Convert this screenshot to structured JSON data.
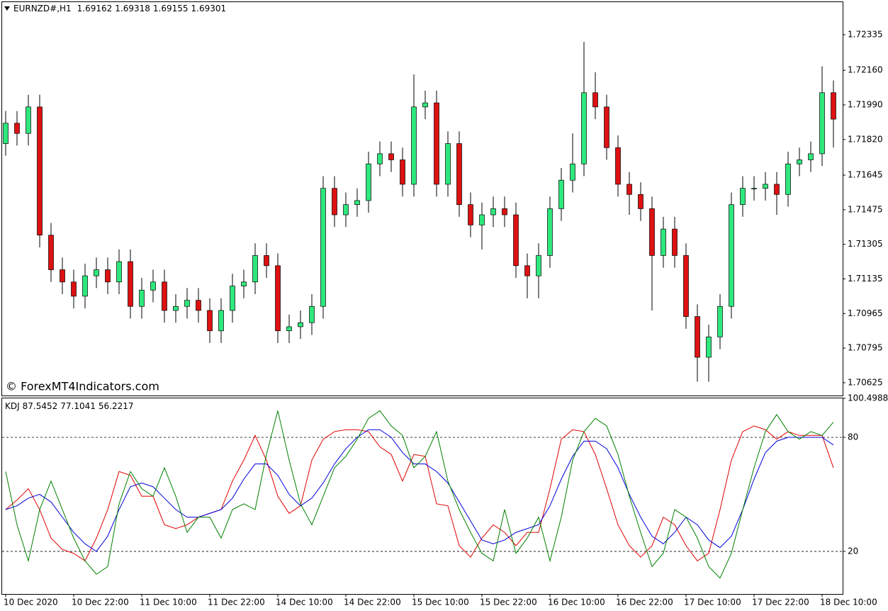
{
  "header": {
    "symbol": "EURNZD#,H1",
    "ohlc": [
      1.69162,
      1.69318,
      1.69155,
      1.69301
    ]
  },
  "watermark": "© ForexMT4Indicators.com",
  "chart_data": [
    {
      "type": "candlestick",
      "up_color": "#2ee87d",
      "down_color": "#dd1111",
      "open": [
        1.718,
        1.719,
        1.7185,
        1.7198,
        1.7135,
        1.7118,
        1.7112,
        1.7105,
        1.7115,
        1.7118,
        1.7112,
        1.7122,
        1.71,
        1.7108,
        1.7112,
        1.7098,
        1.71,
        1.7103,
        1.7098,
        1.7088,
        1.7098,
        1.711,
        1.7112,
        1.7125,
        1.712,
        1.7088,
        1.709,
        1.7092,
        1.71,
        1.7158,
        1.7145,
        1.715,
        1.7152,
        1.717,
        1.7175,
        1.7172,
        1.716,
        1.7198,
        1.72,
        1.716,
        1.718,
        1.715,
        1.714,
        1.7145,
        1.7148,
        1.7145,
        1.712,
        1.7115,
        1.7125,
        1.7148,
        1.7162,
        1.717,
        1.7205,
        1.7198,
        1.7178,
        1.716,
        1.7155,
        1.7148,
        1.7125,
        1.7138,
        1.7125,
        1.7095,
        1.7075,
        1.7085,
        1.71,
        1.715,
        1.7158,
        1.7158,
        1.716,
        1.7155,
        1.717,
        1.7172,
        1.7175,
        1.7205
      ],
      "high": [
        1.7196,
        1.7196,
        1.7204,
        1.7204,
        1.7141,
        1.7124,
        1.7118,
        1.7121,
        1.7124,
        1.7124,
        1.7128,
        1.7128,
        1.7114,
        1.7118,
        1.7118,
        1.7106,
        1.7109,
        1.7109,
        1.7104,
        1.7104,
        1.7116,
        1.7118,
        1.7131,
        1.7131,
        1.7126,
        1.7096,
        1.7098,
        1.7106,
        1.7164,
        1.7164,
        1.7156,
        1.7158,
        1.7176,
        1.7181,
        1.7181,
        1.7178,
        1.7214,
        1.7206,
        1.7206,
        1.7186,
        1.7186,
        1.7156,
        1.7151,
        1.7154,
        1.7154,
        1.7151,
        1.7126,
        1.7131,
        1.7154,
        1.7168,
        1.7185,
        1.723,
        1.7215,
        1.7204,
        1.7184,
        1.7166,
        1.7161,
        1.7154,
        1.7144,
        1.7144,
        1.7131,
        1.7101,
        1.7091,
        1.7106,
        1.7156,
        1.7164,
        1.7164,
        1.7166,
        1.7166,
        1.7176,
        1.7178,
        1.7181,
        1.7218,
        1.7211
      ],
      "low": [
        1.7174,
        1.7179,
        1.7179,
        1.7129,
        1.7112,
        1.7106,
        1.7099,
        1.7099,
        1.7109,
        1.7106,
        1.7106,
        1.7094,
        1.7094,
        1.7102,
        1.7092,
        1.7092,
        1.7094,
        1.7092,
        1.7082,
        1.7082,
        1.7092,
        1.7104,
        1.7106,
        1.7114,
        1.7082,
        1.7082,
        1.7084,
        1.7086,
        1.7094,
        1.7139,
        1.7139,
        1.7144,
        1.7146,
        1.7164,
        1.7166,
        1.7154,
        1.7154,
        1.7192,
        1.7154,
        1.7154,
        1.7144,
        1.7134,
        1.7128,
        1.7139,
        1.7139,
        1.7114,
        1.7104,
        1.7104,
        1.7119,
        1.7142,
        1.7156,
        1.7164,
        1.7192,
        1.7172,
        1.7154,
        1.7145,
        1.7142,
        1.7098,
        1.7119,
        1.7119,
        1.7089,
        1.7063,
        1.7063,
        1.7079,
        1.7094,
        1.7144,
        1.7152,
        1.7152,
        1.7145,
        1.7149,
        1.7164,
        1.7166,
        1.7169,
        1.7178
      ],
      "close": [
        1.719,
        1.7185,
        1.7198,
        1.7135,
        1.7118,
        1.7112,
        1.7105,
        1.7115,
        1.7118,
        1.7112,
        1.7122,
        1.71,
        1.7108,
        1.7112,
        1.7098,
        1.71,
        1.7103,
        1.7098,
        1.7088,
        1.7098,
        1.711,
        1.7112,
        1.7125,
        1.712,
        1.7088,
        1.709,
        1.7092,
        1.71,
        1.7158,
        1.7145,
        1.715,
        1.7152,
        1.717,
        1.7175,
        1.7172,
        1.716,
        1.7198,
        1.72,
        1.716,
        1.718,
        1.715,
        1.714,
        1.7145,
        1.7148,
        1.7145,
        1.712,
        1.7115,
        1.7125,
        1.7148,
        1.7162,
        1.717,
        1.7205,
        1.7198,
        1.7178,
        1.716,
        1.7155,
        1.7148,
        1.7125,
        1.7138,
        1.7125,
        1.7095,
        1.7075,
        1.7085,
        1.71,
        1.715,
        1.7158,
        1.7158,
        1.716,
        1.7155,
        1.717,
        1.7172,
        1.7175,
        1.7205,
        1.7192
      ],
      "ylim": [
        1.70562,
        1.72495
      ],
      "yticks": [
        1.72335,
        {
          "value": 1.7216,
          "label": "1.72160"
        },
        {
          "value": 1.7199,
          "label": "1.71990"
        },
        {
          "value": 1.7182,
          "label": "1.71820"
        },
        1.71645,
        1.71475,
        1.71305,
        1.71135,
        1.70965,
        1.70795,
        1.70625
      ]
    },
    {
      "type": "line",
      "title": "KDJ",
      "title_values": [
        87.5452,
        77.1041,
        56.2217
      ],
      "categories": [
        "10 Dec 2020",
        null,
        null,
        null,
        null,
        null,
        "10 Dec 22:00",
        null,
        null,
        null,
        null,
        null,
        "11 Dec 10:00",
        null,
        null,
        null,
        null,
        null,
        "11 Dec 22:00",
        null,
        null,
        null,
        null,
        null,
        "14 Dec 10:00",
        null,
        null,
        null,
        null,
        null,
        "14 Dec 22:00",
        null,
        null,
        null,
        null,
        null,
        "15 Dec 10:00",
        null,
        null,
        null,
        null,
        null,
        "15 Dec 22:00",
        null,
        null,
        null,
        null,
        null,
        "16 Dec 10:00",
        null,
        null,
        null,
        null,
        null,
        "16 Dec 22:00",
        null,
        null,
        null,
        null,
        null,
        "17 Dec 10:00",
        null,
        null,
        null,
        null,
        null,
        "17 Dec 22:00",
        null,
        null,
        null,
        null,
        null,
        "18 Dec 10:00",
        null
      ],
      "series": [
        {
          "color": "#e00000",
          "values": [
            42,
            47,
            53,
            42,
            27,
            21,
            19,
            15,
            27,
            42,
            62,
            60,
            49,
            49,
            34,
            32,
            34,
            38,
            40,
            42,
            57,
            68,
            81,
            68,
            49,
            40,
            44,
            68,
            79,
            83,
            84,
            84,
            83,
            75,
            71,
            57,
            71,
            70,
            45,
            44,
            23,
            17,
            27,
            34,
            30,
            23,
            30,
            30,
            53,
            79,
            84,
            83,
            71,
            53,
            34,
            23,
            17,
            23,
            38,
            34,
            23,
            15,
            19,
            42,
            68,
            83,
            86,
            84,
            79,
            83,
            81,
            81,
            81,
            64
          ]
        },
        {
          "color": "#0000dd",
          "values": [
            42,
            44,
            48,
            50,
            46,
            38,
            30,
            24,
            20,
            28,
            42,
            54,
            56,
            54,
            48,
            42,
            38,
            38,
            40,
            42,
            48,
            58,
            66,
            66,
            60,
            50,
            44,
            48,
            56,
            66,
            74,
            80,
            84,
            84,
            80,
            72,
            66,
            66,
            62,
            56,
            46,
            36,
            26,
            24,
            26,
            30,
            32,
            34,
            44,
            58,
            70,
            78,
            78,
            74,
            64,
            50,
            38,
            28,
            24,
            30,
            38,
            34,
            26,
            22,
            28,
            42,
            58,
            72,
            78,
            80,
            80,
            80,
            80,
            76
          ]
        },
        {
          "color": "#008000",
          "values": [
            62,
            34,
            15,
            42,
            57,
            42,
            27,
            15,
            8,
            12,
            45,
            62,
            53,
            49,
            64,
            49,
            30,
            38,
            38,
            27,
            42,
            45,
            42,
            71,
            94,
            68,
            45,
            34,
            49,
            64,
            70,
            79,
            90,
            94,
            86,
            81,
            64,
            70,
            83,
            57,
            42,
            30,
            19,
            15,
            42,
            19,
            27,
            38,
            15,
            38,
            68,
            83,
            90,
            86,
            71,
            49,
            30,
            12,
            19,
            42,
            38,
            27,
            12,
            6,
            19,
            42,
            64,
            83,
            92,
            83,
            79,
            83,
            81,
            88
          ]
        }
      ],
      "ylim": [
        -2.4,
        100.4988
      ],
      "yticks": [
        100.4988,
        80,
        20
      ]
    }
  ]
}
